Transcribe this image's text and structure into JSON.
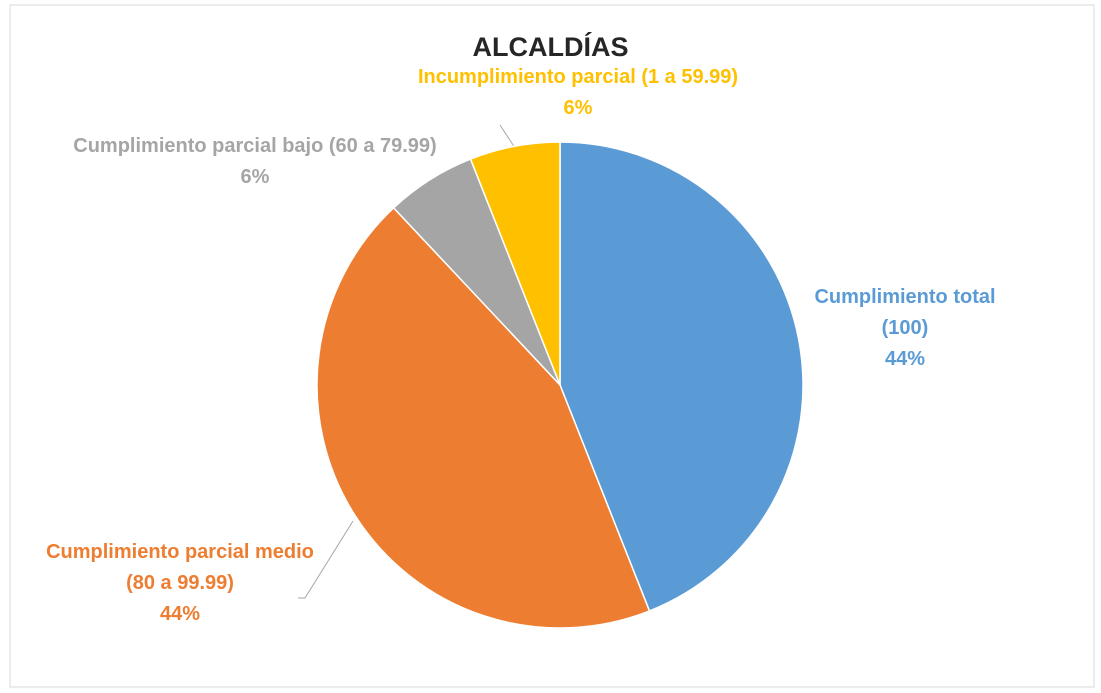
{
  "chart_data": {
    "type": "pie",
    "title": "ALCALDÍAS",
    "categories": [
      "Cumplimiento total (100)",
      "Cumplimiento parcial medio (80 a 99.99)",
      "Cumplimiento parcial bajo (60 a 79.99)",
      "Incumplimiento parcial (1 a 59.99)"
    ],
    "values": [
      44,
      44,
      6,
      6
    ],
    "value_labels": [
      "44%",
      "44%",
      "6%",
      "6%"
    ],
    "colors": [
      "#5b9bd5",
      "#ed7d31",
      "#a5a5a5",
      "#ffc000"
    ]
  }
}
